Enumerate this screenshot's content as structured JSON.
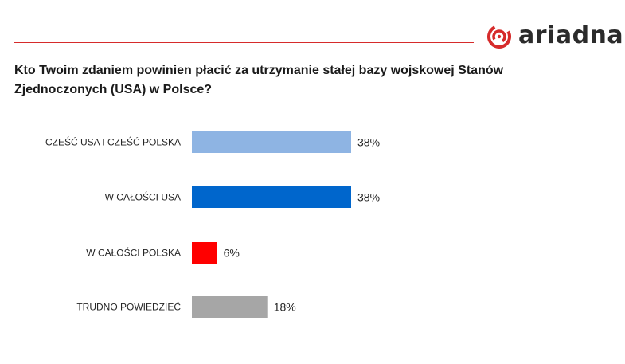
{
  "header": {
    "logo_text": "ariadna",
    "brand_color": "#d62b2b"
  },
  "chart_data": {
    "type": "bar",
    "orientation": "horizontal",
    "title": "Kto Twoim zdaniem powinien płacić za utrzymanie stałej bazy wojskowej Stanów Zjednoczonych (USA) w Polsce?",
    "categories": [
      "CZEŚĆ USA I CZEŚĆ POLSKA",
      "W CAŁOŚCI USA",
      "W CAŁOŚCI POLSKA",
      "TRUDNO POWIEDZIEĆ"
    ],
    "values": [
      38,
      38,
      6,
      18
    ],
    "value_labels": [
      "38%",
      "38%",
      "6%",
      "18%"
    ],
    "colors": [
      "#8eb4e3",
      "#0066cc",
      "#ff0000",
      "#a6a6a6"
    ],
    "unit": "%",
    "xlim": [
      0,
      100
    ],
    "grid": false,
    "legend": "none"
  }
}
